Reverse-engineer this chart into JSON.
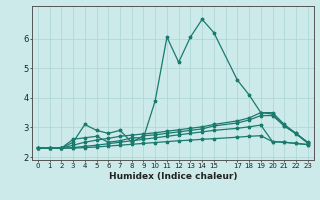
{
  "title": "",
  "xlabel": "Humidex (Indice chaleur)",
  "bg_color": "#cceaea",
  "line_color": "#1a7a6e",
  "grid_color": "#b0d8d8",
  "x_values": [
    0,
    1,
    2,
    3,
    4,
    5,
    6,
    7,
    8,
    9,
    10,
    11,
    12,
    13,
    14,
    15,
    17,
    18,
    19,
    20,
    21,
    22,
    23
  ],
  "lines": [
    [
      2.3,
      2.3,
      2.3,
      2.6,
      2.65,
      2.7,
      2.5,
      2.55,
      2.65,
      2.65,
      3.9,
      6.05,
      5.2,
      6.05,
      6.65,
      6.2,
      4.6,
      4.1,
      3.5,
      3.5,
      3.1,
      2.8,
      2.5
    ],
    [
      2.3,
      2.3,
      2.3,
      2.5,
      3.1,
      2.9,
      2.8,
      2.9,
      2.5,
      2.72,
      2.75,
      2.8,
      2.85,
      2.9,
      2.95,
      3.05,
      3.15,
      3.25,
      3.4,
      3.4,
      3.05,
      2.8,
      2.48
    ],
    [
      2.3,
      2.3,
      2.3,
      2.4,
      2.5,
      2.57,
      2.63,
      2.7,
      2.74,
      2.78,
      2.82,
      2.87,
      2.92,
      2.97,
      3.02,
      3.1,
      3.22,
      3.32,
      3.5,
      3.45,
      3.05,
      2.78,
      2.47
    ],
    [
      2.3,
      2.3,
      2.3,
      2.32,
      2.36,
      2.4,
      2.45,
      2.5,
      2.55,
      2.6,
      2.65,
      2.7,
      2.75,
      2.8,
      2.85,
      2.9,
      2.97,
      3.02,
      3.08,
      2.52,
      2.5,
      2.46,
      2.42
    ],
    [
      2.3,
      2.3,
      2.3,
      2.3,
      2.32,
      2.34,
      2.37,
      2.4,
      2.43,
      2.46,
      2.49,
      2.52,
      2.55,
      2.57,
      2.6,
      2.62,
      2.67,
      2.7,
      2.72,
      2.52,
      2.5,
      2.46,
      2.42
    ]
  ],
  "ylim": [
    1.9,
    7.1
  ],
  "yticks": [
    2,
    3,
    4,
    5,
    6
  ],
  "xlim": [
    -0.5,
    23.5
  ],
  "xtick_labels": [
    "0",
    "1",
    "2",
    "3",
    "4",
    "5",
    "6",
    "7",
    "8",
    "9",
    "10",
    "11",
    "12",
    "13",
    "14",
    "15",
    "",
    "17",
    "18",
    "19",
    "20",
    "21",
    "22",
    "23"
  ]
}
